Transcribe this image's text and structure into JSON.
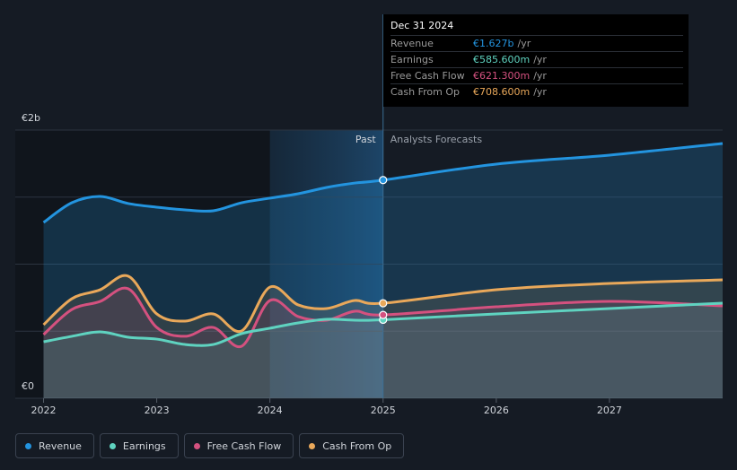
{
  "chart_data": {
    "type": "line",
    "annotations": {
      "past": "Past",
      "forecast": "Analysts Forecasts"
    },
    "x": [
      2022,
      2022.25,
      2022.5,
      2022.75,
      2023,
      2023.25,
      2023.5,
      2023.75,
      2024,
      2024.25,
      2024.5,
      2024.75,
      2025,
      2026,
      2027,
      2028
    ],
    "series": [
      {
        "name": "Revenue",
        "color": "#2394df",
        "values": [
          1311,
          1458,
          1505,
          1452,
          1425,
          1405,
          1398,
          1458,
          1492,
          1525,
          1572,
          1605,
          1627,
          1746,
          1813,
          1900
        ]
      },
      {
        "name": "Earnings",
        "color": "#5fd3c0",
        "values": [
          421,
          462,
          495,
          455,
          441,
          401,
          401,
          482,
          522,
          562,
          589,
          582,
          585.6,
          629,
          669,
          709
        ]
      },
      {
        "name": "Free Cash Flow",
        "color": "#d4517f",
        "values": [
          475,
          662,
          722,
          816,
          528,
          462,
          528,
          388,
          729,
          609,
          582,
          649,
          621.3,
          682,
          722,
          689
        ]
      },
      {
        "name": "Cash From Op",
        "color": "#e9a85a",
        "values": [
          548,
          742,
          809,
          910,
          629,
          575,
          629,
          502,
          829,
          696,
          669,
          729,
          708.6,
          809,
          856,
          883
        ]
      }
    ],
    "xlim": [
      2021.75,
      2028
    ],
    "xticks": [
      2022,
      2023,
      2024,
      2025,
      2026,
      2027
    ],
    "ylim": [
      0,
      2000
    ],
    "yticks": [
      {
        "value": 0,
        "label": "€0"
      },
      {
        "value": 500,
        "label": null
      },
      {
        "value": 1000,
        "label": null
      },
      {
        "value": 1500,
        "label": null
      },
      {
        "value": 2000,
        "label": "€2b"
      }
    ],
    "grid": true,
    "tooltip": {
      "date": "Dec 31 2024",
      "x": 2025,
      "rows": [
        {
          "label": "Revenue",
          "value": 1627,
          "value_label": "€1.627b",
          "unit": "/yr"
        },
        {
          "label": "Earnings",
          "value": 585.6,
          "value_label": "€585.600m",
          "unit": "/yr"
        },
        {
          "label": "Free Cash Flow",
          "value": 621.3,
          "value_label": "€621.300m",
          "unit": "/yr"
        },
        {
          "label": "Cash From Op",
          "value": 708.6,
          "value_label": "€708.600m",
          "unit": "/yr"
        }
      ]
    }
  }
}
